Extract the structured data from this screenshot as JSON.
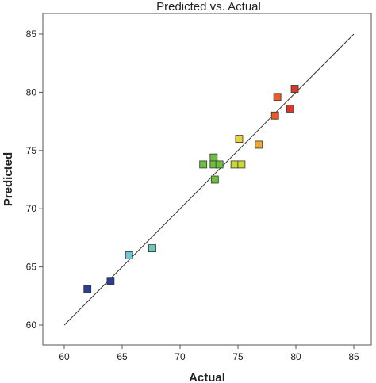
{
  "chart_data": {
    "type": "scatter",
    "title": "Predicted vs. Actual",
    "xlabel": "Actual",
    "ylabel": "Predicted",
    "xlim": [
      60,
      85
    ],
    "ylim": [
      60,
      85
    ],
    "xticks": [
      "60",
      "65",
      "70",
      "75",
      "80",
      "85"
    ],
    "yticks": [
      "60",
      "65",
      "70",
      "75",
      "80",
      "85"
    ],
    "grid": false,
    "reference_line": {
      "from": [
        60,
        60
      ],
      "to": [
        85,
        85
      ]
    },
    "points": [
      {
        "x": 62.0,
        "y": 63.1,
        "color": "#2b3f8f"
      },
      {
        "x": 64.0,
        "y": 63.8,
        "color": "#2b3f8f"
      },
      {
        "x": 65.6,
        "y": 66.0,
        "color": "#6fc7d6"
      },
      {
        "x": 67.6,
        "y": 66.6,
        "color": "#6fc7b4"
      },
      {
        "x": 72.0,
        "y": 73.8,
        "color": "#6fbf3f"
      },
      {
        "x": 72.9,
        "y": 74.4,
        "color": "#6fbf3f"
      },
      {
        "x": 72.9,
        "y": 73.8,
        "color": "#6fbf3f"
      },
      {
        "x": 73.4,
        "y": 73.8,
        "color": "#6fbf3f"
      },
      {
        "x": 73.0,
        "y": 72.5,
        "color": "#6fbf3f"
      },
      {
        "x": 74.7,
        "y": 73.8,
        "color": "#c9d93a"
      },
      {
        "x": 75.3,
        "y": 73.8,
        "color": "#c9d93a"
      },
      {
        "x": 75.1,
        "y": 76.0,
        "color": "#e8d33a"
      },
      {
        "x": 76.8,
        "y": 75.5,
        "color": "#f0a830"
      },
      {
        "x": 78.2,
        "y": 78.0,
        "color": "#e85a28"
      },
      {
        "x": 78.4,
        "y": 79.6,
        "color": "#e85a28"
      },
      {
        "x": 79.5,
        "y": 78.6,
        "color": "#d83a28"
      },
      {
        "x": 79.9,
        "y": 80.3,
        "color": "#d83a28"
      }
    ]
  }
}
